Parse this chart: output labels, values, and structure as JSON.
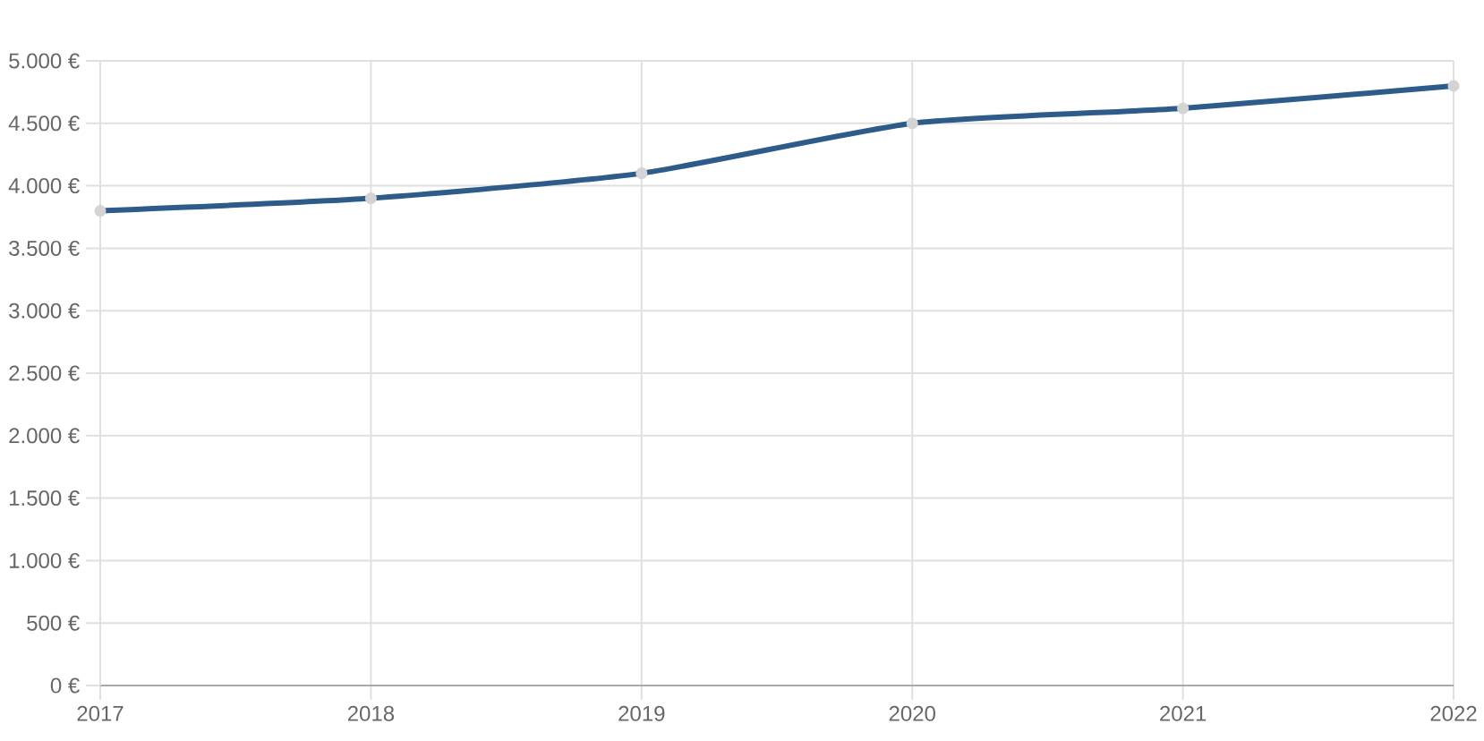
{
  "chart_data": {
    "type": "line",
    "categories": [
      "2017",
      "2018",
      "2019",
      "2020",
      "2021",
      "2022"
    ],
    "series": [
      {
        "color": "#2e5c8a",
        "values": [
          3800,
          3900,
          4100,
          4500,
          4620,
          4800
        ]
      }
    ],
    "ylim": [
      0,
      5000
    ],
    "yticks": [
      {
        "value": 0,
        "label": "0 €"
      },
      {
        "value": 500,
        "label": "500 €"
      },
      {
        "value": 1000,
        "label": "1.000 €"
      },
      {
        "value": 1500,
        "label": "1.500 €"
      },
      {
        "value": 2000,
        "label": "2.000 €"
      },
      {
        "value": 2500,
        "label": "2.500 €"
      },
      {
        "value": 3000,
        "label": "3.000 €"
      },
      {
        "value": 3500,
        "label": "3.500 €"
      },
      {
        "value": 4000,
        "label": "4.000 €"
      },
      {
        "value": 4500,
        "label": "4.500 €"
      },
      {
        "value": 5000,
        "label": "5.000 €"
      }
    ],
    "grid": true,
    "marker": "circle",
    "line_style": "solid"
  }
}
